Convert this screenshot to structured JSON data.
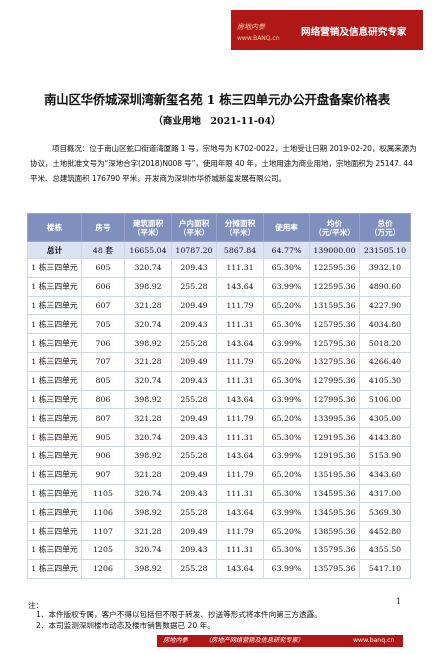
{
  "banner": {
    "brand": "房地内参",
    "site": "www.BANQ.cn",
    "text": "网络营销及信息研究专家",
    "color": "#b01818"
  },
  "title": "南山区华侨城深圳湾新玺名苑 1 栋三四单元办公开盘备案价格表",
  "subtitle": "（商业用地　2021-11-04）",
  "intro": "项目概况：位于南山区蛇口街道湾厦路 1 号，宗地号为 K702-0022，土地受让日期 2019-02-20，权属来源为协议，土地批准文号为“深地合字(2018)N008 号”，使用年限 40 年，土地用途为商业用地，宗地面积为 25147. 44 平米、总建筑面积 176790 平米，开发商为深圳市华侨城新玺发展有限公司。",
  "table": {
    "header_color": "#7f8fbe",
    "headers": [
      "楼栋",
      "房号",
      "建筑面积\n（平米）",
      "户内面积\n（平米）",
      "分摊面积\n（平米）",
      "使用率",
      "均价\n（元/平米）",
      "总价\n（万元）"
    ],
    "total": [
      "总计",
      "48 套",
      "16655.04",
      "10787.20",
      "5867.84",
      "64.77%",
      "139000.00",
      "231505.10"
    ],
    "rows": [
      [
        "1 栋三四单元",
        "605",
        "320.74",
        "209.43",
        "111.31",
        "65.30%",
        "122595.36",
        "3932.10"
      ],
      [
        "1 栋三四单元",
        "606",
        "398.92",
        "255.28",
        "143.64",
        "63.99%",
        "122595.36",
        "4890.60"
      ],
      [
        "1 栋三四单元",
        "607",
        "321.28",
        "209.49",
        "111.79",
        "65.20%",
        "131595.36",
        "4227.90"
      ],
      [
        "1 栋三四单元",
        "705",
        "320.74",
        "209.43",
        "111.31",
        "65.30%",
        "125795.36",
        "4034.80"
      ],
      [
        "1 栋三四单元",
        "706",
        "398.92",
        "255.28",
        "143.64",
        "63.99%",
        "125795.36",
        "5018.20"
      ],
      [
        "1 栋三四单元",
        "707",
        "321.28",
        "209.49",
        "111.79",
        "65.20%",
        "132795.36",
        "4266.40"
      ],
      [
        "1 栋三四单元",
        "805",
        "320.74",
        "209.43",
        "111.31",
        "65.30%",
        "127995.36",
        "4105.30"
      ],
      [
        "1 栋三四单元",
        "806",
        "398.92",
        "255.28",
        "143.64",
        "63.99%",
        "127995.36",
        "5106.00"
      ],
      [
        "1 栋三四单元",
        "807",
        "321.28",
        "209.49",
        "111.79",
        "65.20%",
        "133995.36",
        "4305.00"
      ],
      [
        "1 栋三四单元",
        "905",
        "320.74",
        "209.43",
        "111.31",
        "65.30%",
        "129195.36",
        "4143.80"
      ],
      [
        "1 栋三四单元",
        "906",
        "398.92",
        "255.28",
        "143.64",
        "63.99%",
        "129195.36",
        "5153.90"
      ],
      [
        "1 栋三四单元",
        "907",
        "321.28",
        "209.49",
        "111.79",
        "65.20%",
        "135195.36",
        "4343.60"
      ],
      [
        "1 栋三四单元",
        "1105",
        "320.74",
        "209.43",
        "111.31",
        "65.30%",
        "134595.36",
        "4317.00"
      ],
      [
        "1 栋三四单元",
        "1106",
        "398.92",
        "255.28",
        "143.64",
        "63.99%",
        "134595.36",
        "5369.30"
      ],
      [
        "1 栋三四单元",
        "1107",
        "321.28",
        "209.49",
        "111.79",
        "65.20%",
        "138595.36",
        "4452.80"
      ],
      [
        "1 栋三四单元",
        "1205",
        "320.74",
        "209.43",
        "111.31",
        "65.30%",
        "135795.36",
        "4355.50"
      ],
      [
        "1 栋三四单元",
        "1206",
        "398.92",
        "255.28",
        "143.64",
        "63.99%",
        "135795.36",
        "5417.10"
      ]
    ]
  },
  "notes": {
    "label": "注：",
    "items": [
      "1、本件版权专属，客户不得以包括但不限于转发、抄送等形式将本件向第三方透露。",
      "2、本司监测深圳楼市动态及楼市销售数据已 20 年。"
    ]
  },
  "page_number": "1",
  "footer": {
    "brand": "房地内参",
    "tagline": "（房地产网络营销及信息研究专家）",
    "site": "www.banq.cn"
  }
}
